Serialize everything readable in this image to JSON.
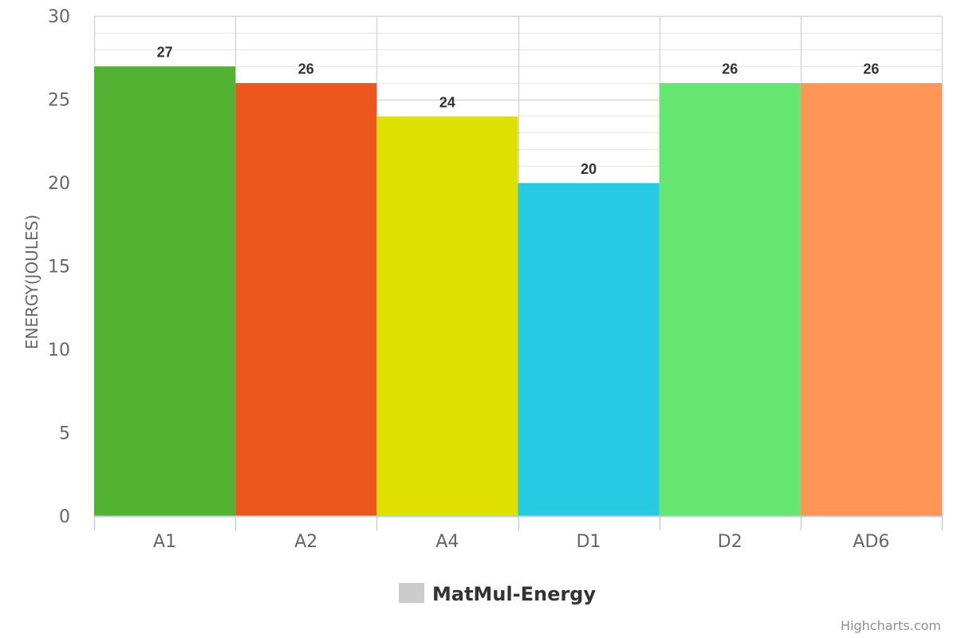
{
  "chart_data": {
    "type": "bar",
    "categories": [
      "A1",
      "A2",
      "A4",
      "D1",
      "D2",
      "AD6"
    ],
    "series": [
      {
        "name": "MatMul-Energy",
        "values": [
          27,
          26,
          24,
          20,
          26,
          26
        ]
      }
    ],
    "bar_colors": [
      "#52b232",
      "#eb561c",
      "#dde000",
      "#27cae3",
      "#65e670",
      "#ff9655"
    ],
    "ylabel": "ENERGY(JOULES)",
    "xlabel": "",
    "ylim": [
      0,
      30
    ],
    "y_ticks": [
      0,
      5,
      10,
      15,
      20,
      25,
      30
    ],
    "minor_grid_step": 1,
    "grid": true,
    "legend": {
      "placement": "bottom-center",
      "label": "MatMul-Energy",
      "swatch_color": "#cccccc"
    },
    "credits": "Highcharts.com"
  }
}
